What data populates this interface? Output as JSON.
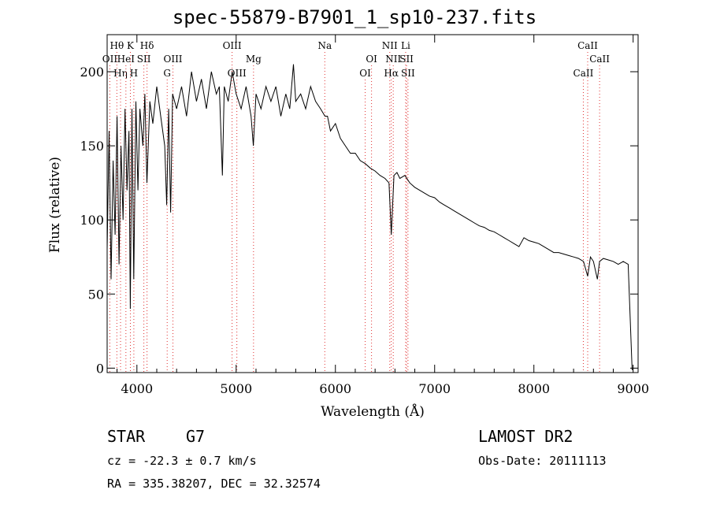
{
  "chart_data": {
    "type": "line",
    "title": "spec-55879-B7901_1_sp10-237.fits",
    "xlabel": "Wavelength (Å)",
    "ylabel": "Flux (relative)",
    "xlim": [
      3700,
      9050
    ],
    "ylim": [
      -3,
      225
    ],
    "x_ticks": [
      4000,
      5000,
      6000,
      7000,
      8000,
      9000
    ],
    "y_ticks": [
      0,
      50,
      100,
      150,
      200
    ],
    "line_color": "#000000",
    "marker_color": "#e03030",
    "series": [
      {
        "x": [
          3700,
          3720,
          3740,
          3760,
          3780,
          3800,
          3820,
          3840,
          3860,
          3880,
          3900,
          3920,
          3933,
          3950,
          3968,
          3990,
          4010,
          4030,
          4060,
          4080,
          4101,
          4130,
          4160,
          4200,
          4240,
          4280,
          4300,
          4320,
          4340,
          4360,
          4400,
          4450,
          4500,
          4550,
          4600,
          4650,
          4700,
          4750,
          4800,
          4830,
          4861,
          4880,
          4920,
          4960,
          5000,
          5050,
          5100,
          5150,
          5173,
          5200,
          5250,
          5300,
          5350,
          5400,
          5450,
          5500,
          5540,
          5577,
          5600,
          5650,
          5700,
          5750,
          5800,
          5850,
          5895,
          5920,
          5950,
          6000,
          6050,
          6100,
          6150,
          6200,
          6250,
          6300,
          6350,
          6400,
          6450,
          6500,
          6540,
          6563,
          6590,
          6620,
          6650,
          6700,
          6750,
          6800,
          6850,
          6900,
          6950,
          7000,
          7050,
          7100,
          7150,
          7200,
          7250,
          7300,
          7350,
          7400,
          7450,
          7500,
          7550,
          7600,
          7650,
          7700,
          7750,
          7800,
          7850,
          7900,
          7950,
          8000,
          8050,
          8100,
          8150,
          8200,
          8250,
          8300,
          8350,
          8400,
          8450,
          8500,
          8542,
          8570,
          8600,
          8640,
          8662,
          8700,
          8750,
          8800,
          8850,
          8900,
          8950,
          8990,
          9000
        ],
        "y": [
          80,
          160,
          60,
          140,
          90,
          170,
          70,
          150,
          100,
          175,
          120,
          160,
          40,
          175,
          60,
          180,
          120,
          175,
          150,
          185,
          125,
          180,
          165,
          190,
          170,
          150,
          110,
          175,
          105,
          185,
          175,
          190,
          170,
          200,
          180,
          195,
          175,
          200,
          185,
          190,
          130,
          190,
          180,
          200,
          185,
          175,
          190,
          170,
          150,
          185,
          175,
          190,
          180,
          190,
          170,
          185,
          175,
          205,
          180,
          185,
          175,
          190,
          180,
          175,
          170,
          170,
          160,
          165,
          155,
          150,
          145,
          145,
          140,
          138,
          135,
          133,
          130,
          128,
          125,
          90,
          130,
          132,
          128,
          130,
          125,
          122,
          120,
          118,
          116,
          115,
          112,
          110,
          108,
          106,
          104,
          102,
          100,
          98,
          96,
          95,
          93,
          92,
          90,
          88,
          86,
          84,
          82,
          88,
          86,
          85,
          84,
          82,
          80,
          78,
          78,
          77,
          76,
          75,
          74,
          72,
          62,
          75,
          72,
          60,
          72,
          74,
          73,
          72,
          70,
          72,
          70,
          -1,
          -1
        ]
      }
    ],
    "line_markers": [
      {
        "label": "Hθ",
        "x": 3798,
        "row": 1
      },
      {
        "label": "OII",
        "x": 3727,
        "row": 2
      },
      {
        "label": "Hη",
        "x": 3835,
        "row": 3
      },
      {
        "label": "HeI",
        "x": 3889,
        "row": 2
      },
      {
        "label": "K",
        "x": 3934,
        "row": 1
      },
      {
        "label": "SII",
        "x": 4070,
        "row": 2
      },
      {
        "label": "H",
        "x": 3969,
        "row": 3
      },
      {
        "label": "Hδ",
        "x": 4102,
        "row": 1
      },
      {
        "label": "OIII",
        "x": 4363,
        "row": 2
      },
      {
        "label": "G",
        "x": 4305,
        "row": 3
      },
      {
        "label": "OIII",
        "x": 4959,
        "row": 1
      },
      {
        "label": "OIII",
        "x": 5007,
        "row": 3
      },
      {
        "label": "Mg",
        "x": 5175,
        "row": 2
      },
      {
        "label": "Na",
        "x": 5893,
        "row": 1
      },
      {
        "label": "OI",
        "x": 6364,
        "row": 2
      },
      {
        "label": "OI",
        "x": 6300,
        "row": 3
      },
      {
        "label": "NII",
        "x": 6548,
        "row": 1
      },
      {
        "label": "Li",
        "x": 6708,
        "row": 1
      },
      {
        "label": "NII",
        "x": 6583,
        "row": 2
      },
      {
        "label": "SII",
        "x": 6717,
        "row": 2
      },
      {
        "label": "Hα",
        "x": 6563,
        "row": 3
      },
      {
        "label": "SII",
        "x": 6731,
        "row": 3
      },
      {
        "label": "CaII",
        "x": 8542,
        "row": 1
      },
      {
        "label": "CaII",
        "x": 8662,
        "row": 2
      },
      {
        "label": "CaII",
        "x": 8498,
        "row": 3
      }
    ]
  },
  "info": {
    "object_class": "STAR",
    "subclass": "G7",
    "survey": "LAMOST DR2",
    "redshift": "cz = -22.3 ± 0.7 km/s",
    "obs_date": "Obs-Date: 20111113",
    "coords": "RA = 335.38207, DEC =  32.32574"
  }
}
